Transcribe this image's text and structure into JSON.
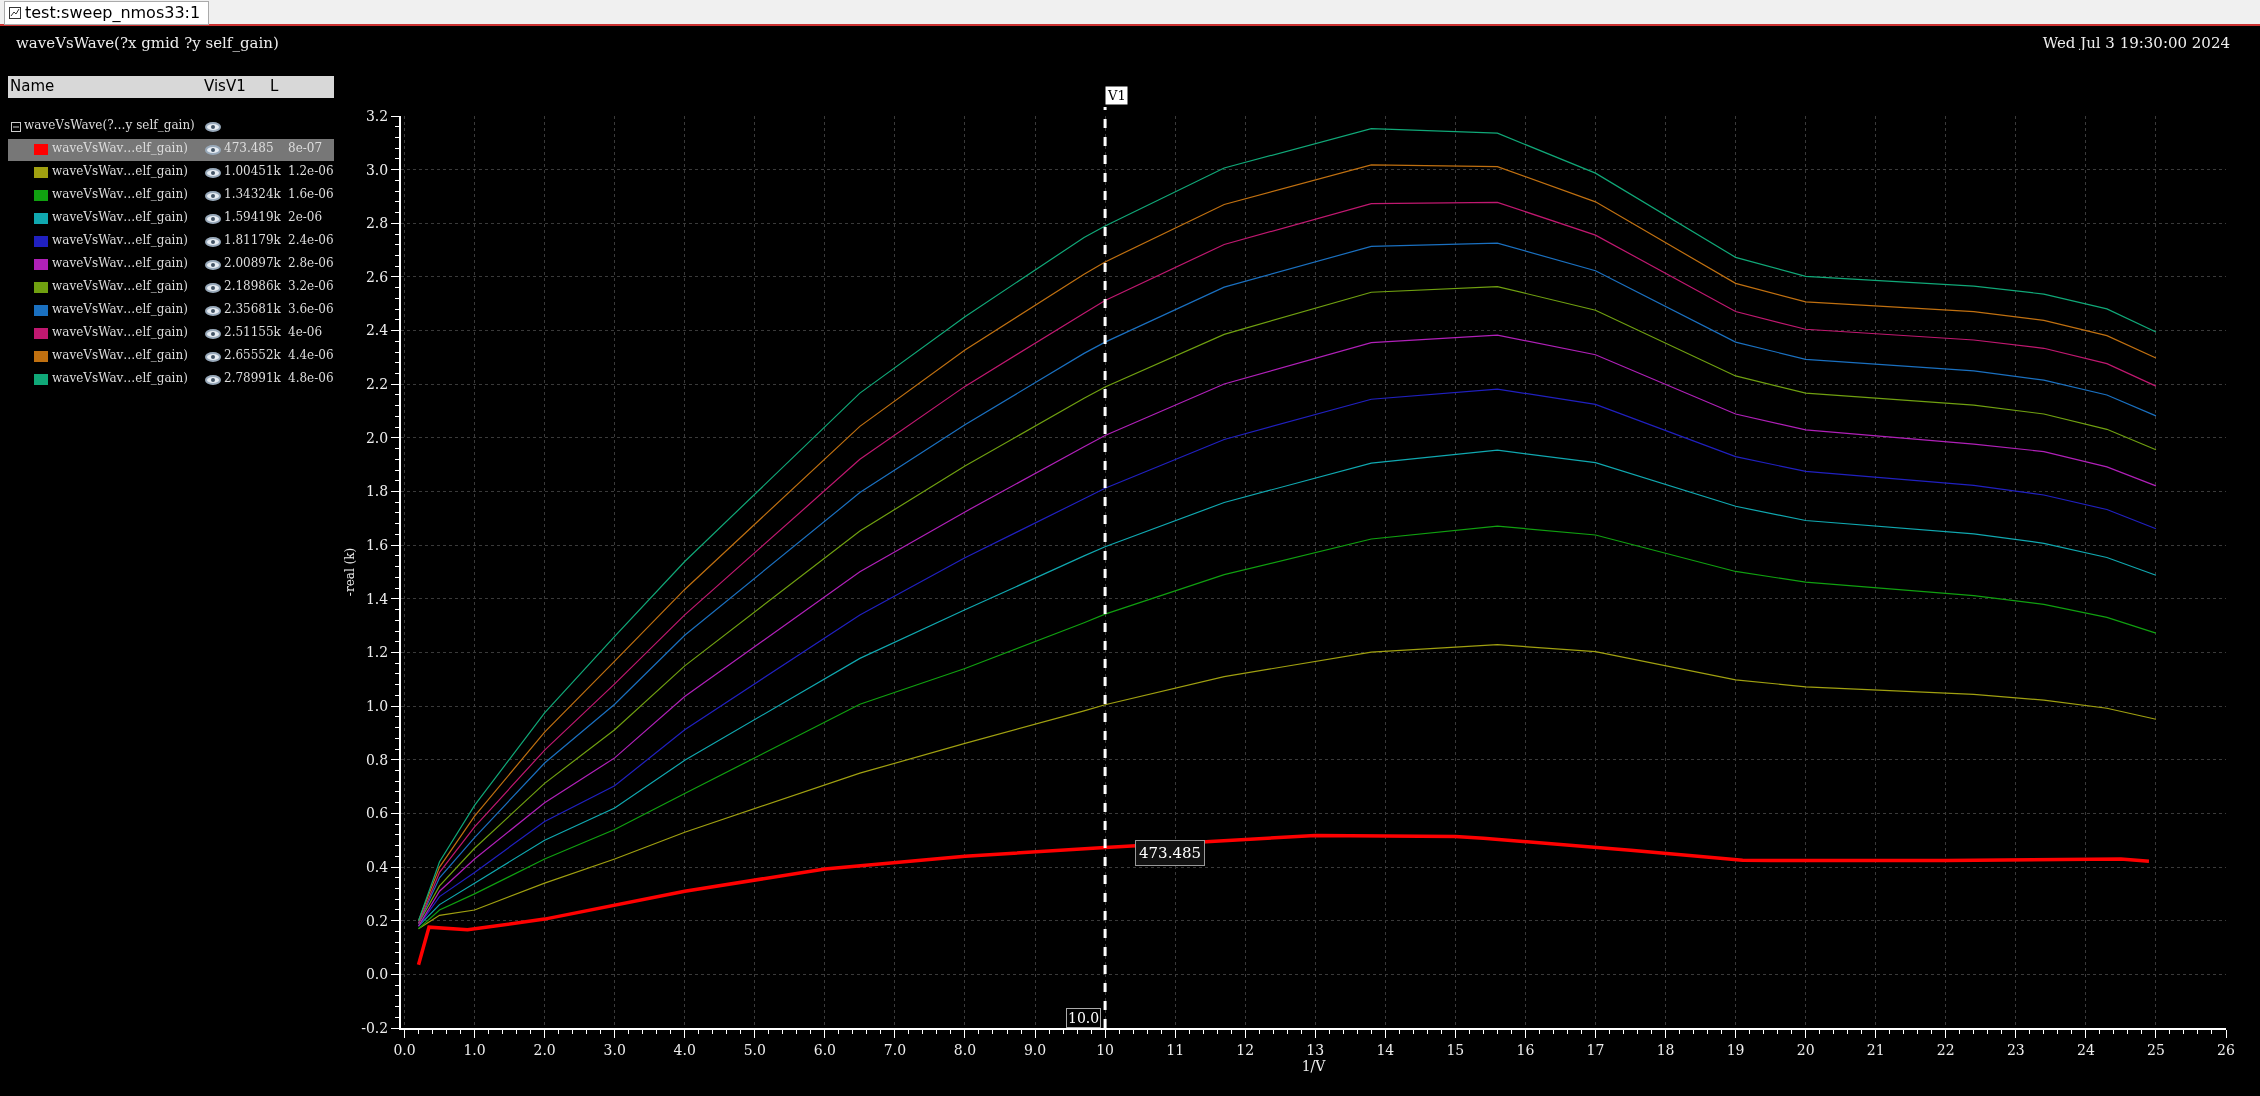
{
  "chart_data": {
    "type": "line",
    "title": "waveVsWave(?x gmid ?y self_gain)",
    "xlabel": "1/V",
    "ylabel": "-real (k)",
    "legend_title": "waveVsWave(?…y self_gain)",
    "legend": "left",
    "grid": true,
    "marker": "none",
    "line_style": "solid",
    "x": [
      0.2,
      0.5,
      1,
      2,
      3,
      4,
      6.5,
      8,
      9.7,
      10,
      11.7,
      13.8,
      15.6,
      17,
      19,
      20,
      22.4,
      23.4,
      24.3,
      25
    ],
    "xlim": [
      -0.05,
      26
    ],
    "ylim": [
      -0.2,
      3.2
    ],
    "xticks": [
      {
        "value": 0,
        "label": "0.0"
      },
      {
        "value": 1,
        "label": "1.0"
      },
      {
        "value": 2,
        "label": "2.0"
      },
      {
        "value": 3,
        "label": "3.0"
      },
      {
        "value": 4,
        "label": "4.0"
      },
      {
        "value": 5,
        "label": "5.0"
      },
      {
        "value": 6,
        "label": "6.0"
      },
      {
        "value": 7,
        "label": "7.0"
      },
      {
        "value": 8,
        "label": "8.0"
      },
      {
        "value": 9,
        "label": "9.0"
      },
      10,
      11,
      12,
      13,
      14,
      15,
      16,
      17,
      18,
      19,
      20,
      21,
      22,
      23,
      24,
      25,
      26
    ],
    "yticks": [
      -0.2,
      {
        "value": 0,
        "label": "0.0"
      },
      0.2,
      0.4,
      0.6,
      0.8,
      {
        "value": 1,
        "label": "1.0"
      },
      1.2,
      1.4,
      1.6,
      1.8,
      {
        "value": 2,
        "label": "2.0"
      },
      2.2,
      2.4,
      2.6,
      2.8,
      {
        "value": 3,
        "label": "3.0"
      },
      3.2
    ],
    "series": [
      {
        "name": "waveVsWav…elf_gain)",
        "color": "#ff0000",
        "x": [
          0.2,
          0.35,
          0.9,
          2,
          4,
          6,
          8,
          10,
          13,
          15,
          15.4,
          17.5,
          19.1,
          19.5,
          22,
          24.5,
          24.9
        ],
        "values": [
          0.036,
          0.176,
          0.166,
          0.206,
          0.31,
          0.393,
          0.44,
          0.473,
          0.518,
          0.514,
          0.507,
          0.463,
          0.425,
          0.424,
          0.424,
          0.43,
          0.422
        ]
      },
      {
        "name": "waveVsWav…elf_gain)",
        "color": "#a0a010",
        "values": [
          0.17,
          0.22,
          0.24,
          0.34,
          0.43,
          0.53,
          0.75,
          0.861,
          0.982,
          1.005,
          1.11,
          1.201,
          1.229,
          1.203,
          1.098,
          1.072,
          1.044,
          1.022,
          0.992,
          0.951
        ]
      },
      {
        "name": "waveVsWav…elf_gain)",
        "color": "#10a010",
        "values": [
          0.17,
          0.24,
          0.3,
          0.43,
          0.54,
          0.674,
          1.007,
          1.14,
          1.311,
          1.343,
          1.49,
          1.623,
          1.671,
          1.638,
          1.502,
          1.462,
          1.412,
          1.379,
          1.331,
          1.272
        ]
      },
      {
        "name": "waveVsWav…elf_gain)",
        "color": "#10a8b0",
        "values": [
          0.18,
          0.26,
          0.34,
          0.5,
          0.62,
          0.798,
          1.178,
          1.359,
          1.56,
          1.594,
          1.759,
          1.906,
          1.954,
          1.908,
          1.745,
          1.692,
          1.642,
          1.607,
          1.554,
          1.488
        ]
      },
      {
        "name": "waveVsWav…elf_gain)",
        "color": "#2020c0",
        "values": [
          0.18,
          0.29,
          0.38,
          0.57,
          0.703,
          0.912,
          1.34,
          1.553,
          1.773,
          1.812,
          1.994,
          2.144,
          2.182,
          2.125,
          1.93,
          1.875,
          1.823,
          1.787,
          1.733,
          1.661
        ]
      },
      {
        "name": "waveVsWav…elf_gain)",
        "color": "#b020b8",
        "values": [
          0.18,
          0.31,
          0.43,
          0.64,
          0.807,
          1.036,
          1.501,
          1.724,
          1.967,
          2.009,
          2.201,
          2.355,
          2.383,
          2.31,
          2.089,
          2.03,
          1.977,
          1.949,
          1.892,
          1.821
        ]
      },
      {
        "name": "waveVsWav…elf_gain)",
        "color": "#70a010",
        "values": [
          0.19,
          0.33,
          0.47,
          0.712,
          0.912,
          1.15,
          1.653,
          1.895,
          2.148,
          2.19,
          2.386,
          2.543,
          2.564,
          2.476,
          2.231,
          2.167,
          2.122,
          2.089,
          2.032,
          1.956
        ]
      },
      {
        "name": "waveVsWav…elf_gain)",
        "color": "#1a70c0",
        "values": [
          0.19,
          0.36,
          0.51,
          0.788,
          1.007,
          1.264,
          1.796,
          2.049,
          2.315,
          2.357,
          2.562,
          2.714,
          2.726,
          2.623,
          2.357,
          2.293,
          2.25,
          2.215,
          2.16,
          2.082
        ]
      },
      {
        "name": "waveVsWav…elf_gain)",
        "color": "#c01870",
        "values": [
          0.19,
          0.38,
          0.55,
          0.836,
          1.083,
          1.34,
          1.92,
          2.192,
          2.465,
          2.512,
          2.721,
          2.873,
          2.878,
          2.756,
          2.471,
          2.405,
          2.365,
          2.334,
          2.277,
          2.193
        ]
      },
      {
        "name": "waveVsWav…elf_gain)",
        "color": "#c07010",
        "values": [
          0.2,
          0.4,
          0.59,
          0.903,
          1.168,
          1.435,
          2.043,
          2.328,
          2.61,
          2.656,
          2.87,
          3.018,
          3.011,
          2.88,
          2.576,
          2.507,
          2.471,
          2.438,
          2.381,
          2.298
        ]
      },
      {
        "name": "waveVsWav…elf_gain)",
        "color": "#10a878",
        "values": [
          0.2,
          0.42,
          0.63,
          0.975,
          1.26,
          1.539,
          2.167,
          2.452,
          2.747,
          2.79,
          3.006,
          3.153,
          3.136,
          2.987,
          2.673,
          2.602,
          2.566,
          2.536,
          2.481,
          2.395
        ]
      }
    ],
    "ref_lines": [
      {
        "axis": "x",
        "value": 10,
        "label": "V1",
        "color": "#ffffff",
        "line_style": "dashed"
      }
    ],
    "annotations": [
      "test:sweep_nmos33:1",
      "Wed Jul 3 19:30:00 2024",
      "Name",
      "Vis",
      "V1",
      "L",
      "473.485",
      "8e-07",
      "1.00451k",
      "1.2e-06",
      "1.34324k",
      "1.6e-06",
      "1.59419k",
      "2e-06",
      "1.81179k",
      "2.4e-06",
      "2.00897k",
      "2.8e-06",
      "2.18986k",
      "3.2e-06",
      "2.35681k",
      "3.6e-06",
      "2.51155k",
      "4e-06",
      "2.65552k",
      "4.4e-06",
      "2.78991k",
      "4.8e-06",
      {
        "text": "473.485",
        "x": 10,
        "y": 0.473
      },
      {
        "text": "10.0",
        "x": 10,
        "y": -0.2
      }
    ]
  }
}
